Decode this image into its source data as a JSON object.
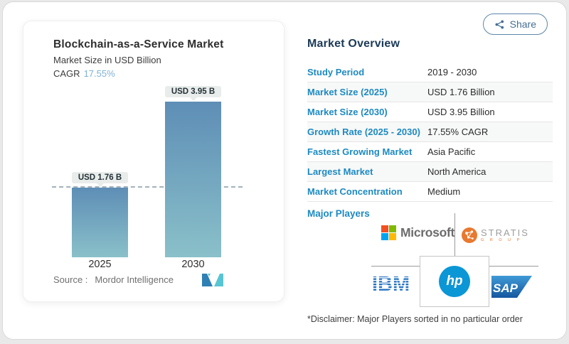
{
  "share": {
    "label": "Share"
  },
  "chart": {
    "title": "Blockchain-as-a-Service Market",
    "subtitle": "Market Size in USD Billion",
    "cagr_label": "CAGR",
    "cagr_value": "17.55%",
    "bars": [
      {
        "year": "2025",
        "label": "USD 1.76 B",
        "value": 1.76
      },
      {
        "year": "2030",
        "label": "USD 3.95 B",
        "value": 3.95
      }
    ],
    "source_label": "Source :",
    "source_value": "Mordor Intelligence"
  },
  "chart_data": {
    "type": "bar",
    "categories": [
      "2025",
      "2030"
    ],
    "values": [
      1.76,
      3.95
    ],
    "title": "Blockchain-as-a-Service Market",
    "subtitle": "Market Size in USD Billion",
    "cagr": "17.55%",
    "data_labels": [
      "USD 1.76 B",
      "USD 3.95 B"
    ],
    "xlabel": "",
    "ylabel": "USD Billion",
    "ylim": [
      0,
      3.95
    ],
    "grid": false,
    "annotations": [
      "dashed reference line at 1.76"
    ]
  },
  "overview": {
    "title": "Market Overview",
    "rows": [
      {
        "label": "Study Period",
        "value": "2019 - 2030"
      },
      {
        "label": "Market Size (2025)",
        "value": "USD 1.76 Billion"
      },
      {
        "label": "Market Size (2030)",
        "value": "USD 3.95 Billion"
      },
      {
        "label": "Growth Rate (2025 - 2030)",
        "value": "17.55% CAGR"
      },
      {
        "label": "Fastest Growing Market",
        "value": "Asia Pacific"
      },
      {
        "label": "Largest Market",
        "value": "North America"
      },
      {
        "label": "Market Concentration",
        "value": "Medium"
      }
    ],
    "major_players_label": "Major Players",
    "disclaimer": "*Disclaimer: Major Players sorted in no particular order"
  },
  "players": {
    "microsoft": "Microsoft",
    "stratis": "STRATIS",
    "stratis_sub": "G R O U P",
    "ibm": "IBM",
    "hp": "hp",
    "sap": "SAP"
  },
  "icons": {
    "share": "share-nodes-icon",
    "mordor": "mordor-intelligence-m-mark"
  },
  "colors": {
    "label_blue": "#1d8ac1",
    "heading_navy": "#1b3a57",
    "cagr_blue": "#7fb3d4",
    "bar_top": "#5e8eb6",
    "bar_bottom": "#8ac0c9",
    "share_blue": "#456f93",
    "stratis_orange": "#e8792f",
    "hp_blue": "#0b96d6",
    "ibm_blue": "#1f70c1"
  }
}
